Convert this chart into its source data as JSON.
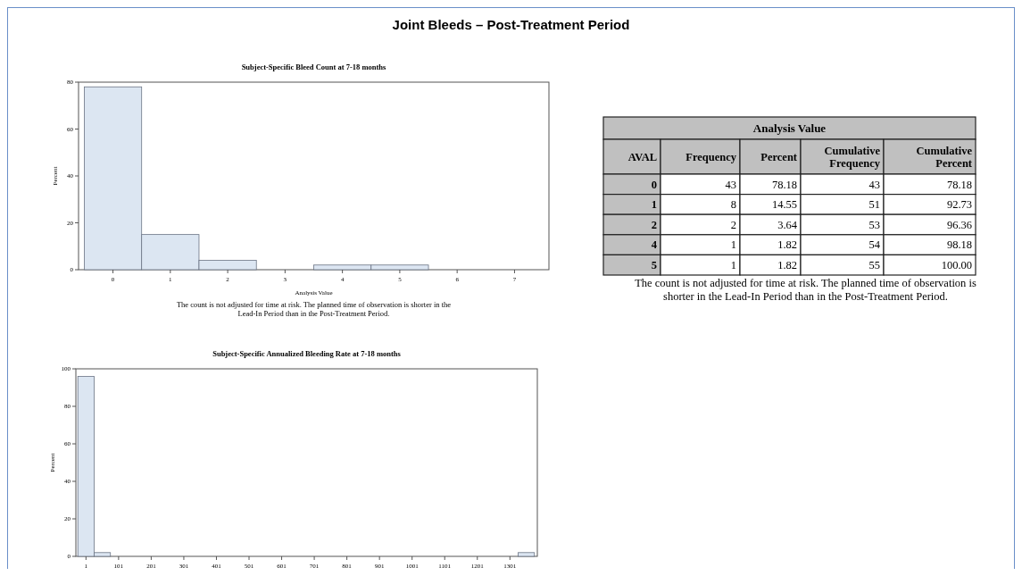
{
  "chart_data": [
    {
      "type": "other",
      "title": "Joint Bleeds – Post-Treatment Period"
    },
    {
      "type": "histogram",
      "title": "Subject-Specific Bleed Count at 7-18 months",
      "xlabel": "Analysis Value",
      "ylabel": "Percent",
      "bins": [
        -0.5,
        0.5,
        1.5,
        2.5,
        3.5,
        4.5,
        5.5
      ],
      "values": [
        78,
        15,
        4,
        0,
        2,
        2
      ],
      "color": "#dce6f2",
      "xlim": [
        -0.6,
        7.6
      ],
      "xticks": [
        0,
        1,
        2,
        3,
        4,
        5,
        6,
        7
      ],
      "ylim": [
        0,
        80
      ],
      "yticks": [
        0,
        20,
        40,
        60,
        80
      ],
      "grid": false,
      "annotations": [
        "The count is not adjusted for time at risk. The planned time of observation is shorter in the Lead-In Period than in the Post-Treatment Period."
      ]
    },
    {
      "type": "other",
      "title": "Analysis Value",
      "categories": [
        "AVAL",
        "Frequency",
        "Percent",
        "Cumulative Frequency",
        "Cumulative Percent"
      ],
      "cell_labels": [
        [
          "0",
          "43",
          "78.18",
          "43",
          "78.18"
        ],
        [
          "1",
          "8",
          "14.55",
          "51",
          "92.73"
        ],
        [
          "2",
          "2",
          "3.64",
          "53",
          "96.36"
        ],
        [
          "4",
          "1",
          "1.82",
          "54",
          "98.18"
        ],
        [
          "5",
          "1",
          "1.82",
          "55",
          "100.00"
        ]
      ],
      "annotations": [
        "The count is not adjusted for time at risk. The planned time of observation is shorter in the Lead-In Period than in the Post-Treatment Period."
      ]
    },
    {
      "type": "histogram",
      "title": "Subject-Specific Annualized Bleeding Rate at 7-18 months",
      "ylabel": "Percent",
      "bins": [
        -24,
        26,
        76,
        126,
        176,
        226,
        276,
        326,
        376,
        426,
        476,
        526,
        576,
        626,
        676,
        726,
        776,
        826,
        876,
        926,
        976,
        1026,
        1076,
        1126,
        1176,
        1226,
        1276,
        1326,
        1376
      ],
      "values": [
        96,
        2,
        0,
        0,
        0,
        0,
        0,
        0,
        0,
        0,
        0,
        0,
        0,
        0,
        0,
        0,
        0,
        0,
        0,
        0,
        0,
        0,
        0,
        0,
        0,
        0,
        0,
        2
      ],
      "color": "#dce6f2",
      "xlim": [
        -30,
        1385
      ],
      "xticks": [
        1,
        101,
        201,
        301,
        401,
        501,
        601,
        701,
        801,
        901,
        1001,
        1101,
        1201,
        1301
      ],
      "ylim": [
        0,
        100
      ],
      "yticks": [
        0,
        20,
        40,
        60,
        80,
        100
      ],
      "grid": false
    }
  ]
}
